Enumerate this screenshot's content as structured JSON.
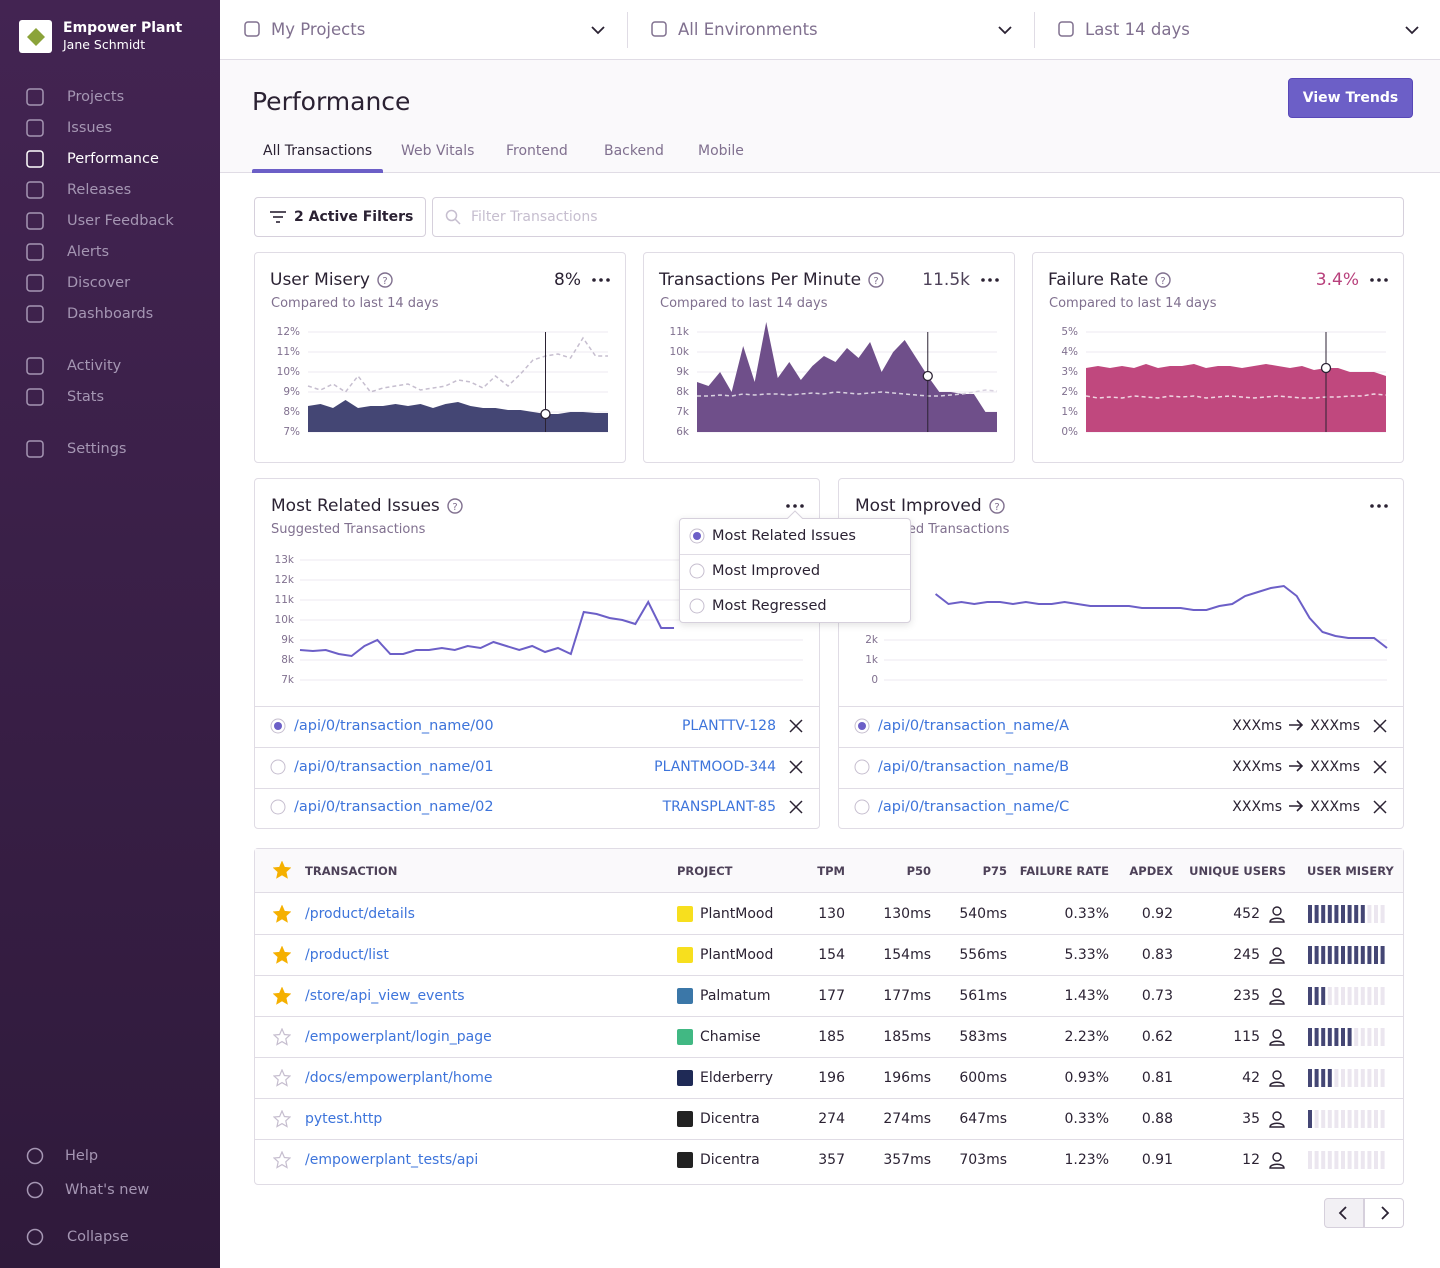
{
  "sidebar": {
    "org": "Empower Plant",
    "user": "Jane Schmidt",
    "nav": [
      "Projects",
      "Issues",
      "Performance",
      "Releases",
      "User Feedback",
      "Alerts",
      "Discover",
      "Dashboards"
    ],
    "active": 2,
    "nav2": [
      "Activity",
      "Stats"
    ],
    "settings": "Settings",
    "footer": [
      "Help",
      "What's new",
      "Collapse"
    ]
  },
  "topbar": [
    "My Projects",
    "All Environments",
    "Last 14 days"
  ],
  "header": {
    "title": "Performance",
    "button": "View Trends",
    "tabs": [
      "All Transactions",
      "Web Vitals",
      "Frontend",
      "Backend",
      "Mobile"
    ],
    "active_tab": 0
  },
  "filters": {
    "button": "2 Active Filters",
    "placeholder": "Filter Transactions"
  },
  "widgets": [
    {
      "type": "area",
      "title": "User Misery",
      "subtitle": "Compared to last 14 days",
      "value": "8%",
      "value_color": "#2b2233",
      "ylim": [
        7,
        12
      ],
      "yticks": [
        {
          "value": 7,
          "label": "7%"
        },
        {
          "value": 8,
          "label": "8%"
        },
        {
          "value": 9,
          "label": "9%"
        },
        {
          "value": 10,
          "label": "10%"
        },
        {
          "value": 11,
          "label": "11%"
        },
        {
          "value": 12,
          "label": "12%"
        }
      ],
      "series": [
        {
          "color": "#444674",
          "values": [
            8.3,
            8.4,
            8.2,
            8.6,
            8.2,
            8.3,
            8.3,
            8.4,
            8.3,
            8.4,
            8.2,
            8.4,
            8.5,
            8.3,
            8.2,
            8.2,
            8.1,
            8.1,
            8.0,
            7.9,
            7.9,
            8.0,
            8.0,
            7.95,
            7.95
          ]
        },
        {
          "color": "#c6becf",
          "style": "dashed",
          "values": [
            9.3,
            9.1,
            9.4,
            9.0,
            9.8,
            9.0,
            9.2,
            9.3,
            9.4,
            9.1,
            9.2,
            9.3,
            9.6,
            9.5,
            9.2,
            9.8,
            9.3,
            9.9,
            10.6,
            10.8,
            10.9,
            10.7,
            11.7,
            10.8,
            10.8
          ]
        }
      ]
    },
    {
      "type": "area",
      "title": "Transactions Per Minute",
      "subtitle": "Compared to last 14 days",
      "value": "11.5k",
      "value_color": "#4d4158",
      "ylim": [
        6000,
        11000
      ],
      "yticks": [
        {
          "value": 6000,
          "label": "6k"
        },
        {
          "value": 7000,
          "label": "7k"
        },
        {
          "value": 8000,
          "label": "8k"
        },
        {
          "value": 9000,
          "label": "9k"
        },
        {
          "value": 10000,
          "label": "10k"
        },
        {
          "value": 11000,
          "label": "11k"
        }
      ],
      "series": [
        {
          "color": "#6f4f8a",
          "values": [
            8500,
            8300,
            9000,
            8000,
            10300,
            8500,
            11500,
            8700,
            9500,
            8600,
            9300,
            9800,
            9500,
            10200,
            9700,
            10500,
            9000,
            10000,
            10600,
            9700,
            8800,
            8000,
            8000,
            7900,
            7900,
            7000,
            7000
          ]
        },
        {
          "color": "#d9d2e0",
          "style": "dashed",
          "values": [
            7800,
            7800,
            7850,
            7800,
            7900,
            7850,
            7900,
            7900,
            7850,
            7900,
            7950,
            7900,
            8000,
            7950,
            7900,
            7950,
            8000,
            7950,
            7900,
            7850,
            7800,
            7800,
            7850,
            7900,
            8000,
            8100,
            8050
          ]
        }
      ]
    },
    {
      "type": "area",
      "title": "Failure Rate",
      "subtitle": "Compared to last 14 days",
      "value": "3.4%",
      "value_color": "#b8407c",
      "ylim": [
        0,
        5
      ],
      "yticks": [
        {
          "value": 0,
          "label": "0%"
        },
        {
          "value": 1,
          "label": "1%"
        },
        {
          "value": 2,
          "label": "2%"
        },
        {
          "value": 3,
          "label": "3%"
        },
        {
          "value": 4,
          "label": "4%"
        },
        {
          "value": 5,
          "label": "5%"
        }
      ],
      "series": [
        {
          "color": "#c0487e",
          "values": [
            3.2,
            3.3,
            3.2,
            3.3,
            3.2,
            3.4,
            3.2,
            3.3,
            3.3,
            3.4,
            3.2,
            3.3,
            3.3,
            3.2,
            3.3,
            3.4,
            3.3,
            3.2,
            3.3,
            3.1,
            3.2,
            3.2,
            3.0,
            3.0,
            3.0,
            2.8
          ]
        },
        {
          "color": "#f0d6e2",
          "style": "dashed",
          "values": [
            1.8,
            1.7,
            1.75,
            1.7,
            1.8,
            1.75,
            1.7,
            1.8,
            1.75,
            1.8,
            1.7,
            1.75,
            1.8,
            1.75,
            1.7,
            1.75,
            1.8,
            1.75,
            1.7,
            1.7,
            1.75,
            1.75,
            1.8,
            1.8,
            1.9,
            1.85
          ]
        }
      ]
    }
  ],
  "lists": [
    {
      "type": "line",
      "title": "Most Related Issues",
      "subtitle": "Suggested Transactions",
      "color": "#6c5fc7",
      "ylim": [
        7000,
        13000
      ],
      "yticks": [
        {
          "value": 7000,
          "label": "7k"
        },
        {
          "value": 8000,
          "label": "8k"
        },
        {
          "value": 9000,
          "label": "9k"
        },
        {
          "value": 10000,
          "label": "10k"
        },
        {
          "value": 11000,
          "label": "11k"
        },
        {
          "value": 12000,
          "label": "12k"
        },
        {
          "value": 13000,
          "label": "13k"
        }
      ],
      "values": [
        8500,
        8450,
        8500,
        8300,
        8200,
        8700,
        9000,
        8300,
        8300,
        8500,
        8500,
        8600,
        8500,
        8700,
        8600,
        8900,
        8700,
        8500,
        8700,
        8400,
        8600,
        8300,
        10400,
        10300,
        10100,
        10000,
        9800,
        10900,
        9600,
        9600,
        null,
        null,
        null,
        null,
        null,
        null,
        null,
        null,
        null,
        null
      ],
      "rows": [
        {
          "selected": true,
          "name": "/api/0/transaction_name/00",
          "issue": "PLANTTV-128"
        },
        {
          "selected": false,
          "name": "/api/0/transaction_name/01",
          "issue": "PLANTMOOD-344"
        },
        {
          "selected": false,
          "name": "/api/0/transaction_name/02",
          "issue": "TRANSPLANT-85"
        }
      ]
    },
    {
      "type": "line",
      "title": "Most Improved",
      "subtitle": "Suggested Transactions",
      "color": "#6c5fc7",
      "ylim": [
        0,
        6000
      ],
      "yticks": [
        0,
        {
          "value": 1000,
          "label": "1k"
        },
        {
          "value": 2000,
          "label": "2k"
        }
      ],
      "values": [
        null,
        null,
        null,
        null,
        4300,
        3800,
        3900,
        3800,
        3900,
        3900,
        3800,
        3900,
        3800,
        3800,
        3900,
        3800,
        3700,
        3700,
        3700,
        3700,
        3600,
        3600,
        3600,
        3600,
        3500,
        3500,
        3700,
        3800,
        4200,
        4400,
        4600,
        4700,
        4200,
        3100,
        2400,
        2200,
        2100,
        2100,
        2100,
        1600
      ],
      "rows": [
        {
          "selected": true,
          "name": "/api/0/transaction_name/A",
          "before": "XXXms",
          "after": "XXXms"
        },
        {
          "selected": false,
          "name": "/api/0/transaction_name/B",
          "before": "XXXms",
          "after": "XXXms"
        },
        {
          "selected": false,
          "name": "/api/0/transaction_name/C",
          "before": "XXXms",
          "after": "XXXms"
        }
      ]
    }
  ],
  "menu": {
    "options": [
      "Most Related Issues",
      "Most Improved",
      "Most Regressed"
    ],
    "selected": 0
  },
  "table": {
    "headers": [
      "TRANSACTION",
      "PROJECT",
      "TPM",
      "P50",
      "P75",
      "FAILURE RATE",
      "APDEX",
      "UNIQUE USERS",
      "USER MISERY"
    ],
    "misery_max": 12,
    "rows": [
      {
        "starred": true,
        "transaction": "/product/details",
        "project": "PlantMood",
        "icon_color": "#f7df1e",
        "tpm": "130",
        "p50": "130ms",
        "p75": "540ms",
        "failure_rate": "0.33%",
        "apdex": "0.92",
        "unique_users": "452",
        "misery": 9
      },
      {
        "starred": true,
        "transaction": "/product/list",
        "project": "PlantMood",
        "icon_color": "#f7df1e",
        "tpm": "154",
        "p50": "154ms",
        "p75": "556ms",
        "failure_rate": "5.33%",
        "apdex": "0.83",
        "unique_users": "245",
        "misery": 12
      },
      {
        "starred": true,
        "transaction": "/store/api_view_events",
        "project": "Palmatum",
        "icon_color": "#3b77a8",
        "tpm": "177",
        "p50": "177ms",
        "p75": "561ms",
        "failure_rate": "1.43%",
        "apdex": "0.73",
        "unique_users": "235",
        "misery": 3
      },
      {
        "starred": false,
        "transaction": "/empowerplant/login_page",
        "project": "Chamise",
        "icon_color": "#41b883",
        "tpm": "185",
        "p50": "185ms",
        "p75": "583ms",
        "failure_rate": "2.23%",
        "apdex": "0.62",
        "unique_users": "115",
        "misery": 7
      },
      {
        "starred": false,
        "transaction": "/docs/empowerplant/home",
        "project": "Elderberry",
        "icon_color": "#1f2a56",
        "tpm": "196",
        "p50": "196ms",
        "p75": "600ms",
        "failure_rate": "0.93%",
        "apdex": "0.81",
        "unique_users": "42",
        "misery": 4
      },
      {
        "starred": false,
        "transaction": "pytest.http",
        "project": "Dicentra",
        "icon_color": "#222222",
        "tpm": "274",
        "p50": "274ms",
        "p75": "647ms",
        "failure_rate": "0.33%",
        "apdex": "0.88",
        "unique_users": "35",
        "misery": 1
      },
      {
        "starred": false,
        "transaction": "/empowerplant_tests/api",
        "project": "Dicentra",
        "icon_color": "#222222",
        "tpm": "357",
        "p50": "357ms",
        "p75": "703ms",
        "failure_rate": "1.23%",
        "apdex": "0.91",
        "unique_users": "12",
        "misery": 0
      }
    ]
  }
}
